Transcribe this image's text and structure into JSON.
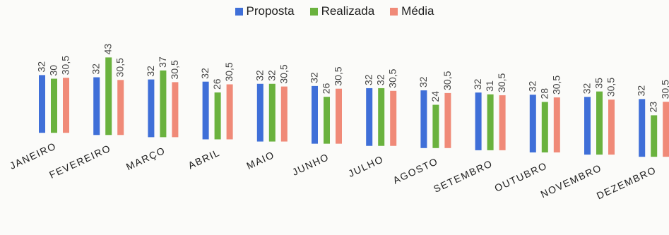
{
  "legend": {
    "items": [
      {
        "label": "Proposta",
        "color": "#3f6fd8"
      },
      {
        "label": "Realizada",
        "color": "#6ab23e"
      },
      {
        "label": "Média",
        "color": "#f08a78"
      }
    ]
  },
  "chart_data": {
    "type": "bar",
    "title": "",
    "xlabel": "",
    "ylabel": "",
    "ylim": [
      0,
      45
    ],
    "grid": false,
    "legend_position": "top",
    "categories": [
      "JANEIRO",
      "FEVEREIRO",
      "MARÇO",
      "ABRIL",
      "MAIO",
      "JUNHO",
      "JULHO",
      "AGOSTO",
      "SETEMBRO",
      "OUTUBRO",
      "NOVEMBRO",
      "DEZEMBRO"
    ],
    "series": [
      {
        "name": "Proposta",
        "color": "#3f6fd8",
        "values": [
          32,
          32,
          32,
          32,
          32,
          32,
          32,
          32,
          32,
          32,
          32,
          32
        ],
        "labels": [
          "32",
          "32",
          "32",
          "32",
          "32",
          "32",
          "32",
          "32",
          "32",
          "32",
          "32",
          "32"
        ]
      },
      {
        "name": "Realizada",
        "color": "#6ab23e",
        "values": [
          30,
          43,
          37,
          26,
          32,
          26,
          32,
          24,
          31,
          28,
          35,
          23
        ],
        "labels": [
          "30",
          "43",
          "37",
          "26",
          "32",
          "26",
          "32",
          "24",
          "31",
          "28",
          "35",
          "23"
        ]
      },
      {
        "name": "Média",
        "color": "#f08a78",
        "values": [
          30.5,
          30.5,
          30.5,
          30.5,
          30.5,
          30.5,
          30.5,
          30.5,
          30.5,
          30.5,
          30.5,
          30.5
        ],
        "labels": [
          "30,5",
          "30,5",
          "30,5",
          "30,5",
          "30,5",
          "30,5",
          "30,5",
          "30,5",
          "30,5",
          "30,5",
          "30,5",
          "30,5"
        ]
      }
    ]
  }
}
